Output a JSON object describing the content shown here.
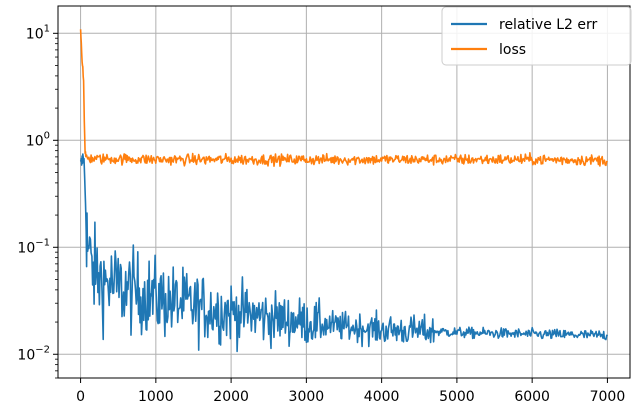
{
  "chart_data": {
    "type": "line",
    "title": "",
    "xlabel": "",
    "ylabel": "",
    "xlim": [
      -300,
      7300
    ],
    "ylim": [
      0.006,
      18
    ],
    "yscale": "log",
    "grid": true,
    "legend_position": "top-right",
    "x_ticks": [
      {
        "value": 0,
        "label": "0"
      },
      {
        "value": 1000,
        "label": "1000"
      },
      {
        "value": 2000,
        "label": "2000"
      },
      {
        "value": 3000,
        "label": "3000"
      },
      {
        "value": 4000,
        "label": "4000"
      },
      {
        "value": 5000,
        "label": "5000"
      },
      {
        "value": 6000,
        "label": "6000"
      },
      {
        "value": 7000,
        "label": "7000"
      }
    ],
    "y_ticks": [
      {
        "value": 0.01,
        "base": "10",
        "exp": "−2"
      },
      {
        "value": 0.1,
        "base": "10",
        "exp": "−1"
      },
      {
        "value": 1,
        "base": "10",
        "exp": "0"
      },
      {
        "value": 10,
        "base": "10",
        "exp": "1"
      }
    ],
    "series": [
      {
        "name": "relative L2 err",
        "color": "#1f77b4",
        "x": [
          0,
          20,
          40,
          60,
          80,
          100,
          150,
          200,
          300,
          400,
          500,
          600,
          800,
          1000,
          1200,
          1500,
          1800,
          2000,
          2200,
          2500,
          2700,
          2800,
          3000,
          3200,
          3500,
          3800,
          4000,
          4200,
          4500,
          4800,
          5000,
          5200,
          5500,
          5800,
          6000,
          6300,
          6500,
          6800,
          7000
        ],
        "y": [
          0.58,
          0.62,
          0.75,
          0.35,
          0.13,
          0.09,
          0.065,
          0.055,
          0.048,
          0.045,
          0.042,
          0.04,
          0.037,
          0.034,
          0.031,
          0.028,
          0.026,
          0.025,
          0.024,
          0.022,
          0.021,
          0.021,
          0.02,
          0.019,
          0.018,
          0.0175,
          0.017,
          0.0168,
          0.0165,
          0.0163,
          0.016,
          0.0158,
          0.0157,
          0.0155,
          0.0154,
          0.0153,
          0.0152,
          0.0151,
          0.015
        ]
      },
      {
        "name": "loss",
        "color": "#ff7f0e",
        "x": [
          0,
          10,
          20,
          30,
          40,
          50,
          60,
          80,
          100,
          200,
          500,
          1000,
          2000,
          3000,
          4000,
          5000,
          6000,
          7000
        ],
        "y": [
          11,
          8,
          5.5,
          4.8,
          3.5,
          1.5,
          0.75,
          0.7,
          0.68,
          0.67,
          0.67,
          0.66,
          0.66,
          0.66,
          0.66,
          0.66,
          0.66,
          0.65
        ]
      }
    ]
  }
}
